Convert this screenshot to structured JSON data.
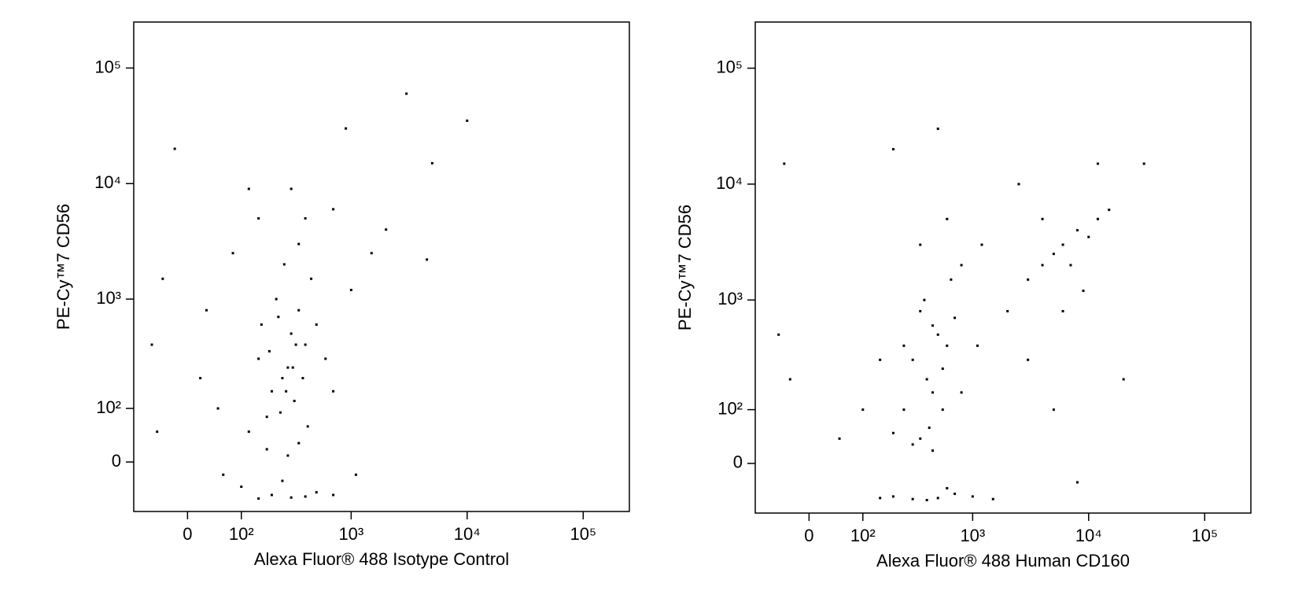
{
  "chart_data": [
    {
      "type": "scatter",
      "xlabel": "Alexa Fluor® 488 Isotype Control",
      "ylabel": "PE-Cy™7 CD56",
      "xscale": "biexponential",
      "yscale": "biexponential",
      "color": "#000000",
      "xlim": [
        -100,
        250000
      ],
      "ylim": [
        -90,
        250000
      ],
      "xticks": [
        0,
        {
          "value": 100,
          "label": "10²"
        },
        {
          "value": 1000,
          "label": "10³"
        },
        {
          "value": 10000,
          "label": "10⁴"
        },
        {
          "value": 100000,
          "label": "10⁵"
        }
      ],
      "yticks": [
        0,
        {
          "value": 100,
          "label": "10²"
        },
        {
          "value": 1000,
          "label": "10³"
        },
        {
          "value": 10000,
          "label": "10⁴"
        },
        {
          "value": 100000,
          "label": "10⁵"
        }
      ],
      "x": [
        150,
        250,
        300,
        200,
        400,
        350,
        180,
        220,
        280,
        320,
        500,
        120,
        260,
        350,
        150,
        80,
        -40,
        -60,
        20,
        50,
        600,
        700,
        450,
        1000,
        1500,
        2000,
        3000,
        10000,
        5000,
        1100,
        300,
        200,
        400,
        150,
        500,
        250,
        100,
        60,
        350,
        280,
        180,
        420,
        230,
        330,
        270,
        190,
        310,
        240,
        380,
        160,
        -20,
        -50,
        700,
        900,
        4500,
        300,
        700,
        120,
        400,
        30
      ],
      "values": [
        300,
        200,
        500,
        150,
        400,
        800,
        80,
        1000,
        250,
        120,
        600,
        50,
        2000,
        3000,
        5000,
        2500,
        1500,
        400,
        200,
        100,
        300,
        150,
        1500,
        1200,
        2500,
        4000,
        60000,
        35000,
        15000,
        -20,
        -60,
        -55,
        -58,
        -62,
        -50,
        -30,
        -40,
        -20,
        30,
        10,
        20,
        60,
        700,
        400,
        150,
        350,
        250,
        90,
        200,
        600,
        20000,
        50,
        -55,
        30000,
        2200,
        9000,
        6000,
        9000,
        5000,
        800
      ]
    },
    {
      "type": "scatter",
      "xlabel": "Alexa Fluor® 488 Human CD160",
      "ylabel": "PE-Cy™7 CD56",
      "xscale": "biexponential",
      "yscale": "biexponential",
      "color": "#000000",
      "xlim": [
        -100,
        250000
      ],
      "ylim": [
        -90,
        250000
      ],
      "xticks": [
        0,
        {
          "value": 100,
          "label": "10²"
        },
        {
          "value": 1000,
          "label": "10³"
        },
        {
          "value": 10000,
          "label": "10⁴"
        },
        {
          "value": 100000,
          "label": "10⁵"
        }
      ],
      "yticks": [
        0,
        {
          "value": 100,
          "label": "10²"
        },
        {
          "value": 1000,
          "label": "10³"
        },
        {
          "value": 10000,
          "label": "10⁴"
        },
        {
          "value": 100000,
          "label": "10⁵"
        }
      ],
      "x": [
        300,
        400,
        500,
        350,
        250,
        450,
        600,
        200,
        380,
        420,
        550,
        300,
        700,
        150,
        100,
        50,
        -30,
        -50,
        800,
        1200,
        2000,
        3000,
        5000,
        6000,
        8000,
        10000,
        7000,
        4000,
        12000,
        15000,
        9000,
        6000,
        3000,
        5000,
        8000,
        20000,
        300,
        500,
        400,
        200,
        700,
        1000,
        1500,
        150,
        600,
        450,
        350,
        250,
        550,
        650,
        2500,
        500,
        200,
        30000,
        12000,
        -40,
        600,
        350,
        450,
        800,
        1100,
        4000
      ],
      "values": [
        300,
        200,
        500,
        800,
        100,
        150,
        400,
        50,
        1000,
        60,
        250,
        30,
        700,
        300,
        100,
        40,
        200,
        500,
        2000,
        3000,
        800,
        1500,
        2500,
        3000,
        4000,
        3500,
        2000,
        5000,
        5000,
        6000,
        1200,
        800,
        300,
        100,
        -30,
        200,
        -60,
        -58,
        -62,
        -55,
        -50,
        -55,
        -60,
        -58,
        -40,
        20,
        40,
        400,
        100,
        1500,
        10000,
        30000,
        20000,
        15000,
        15000,
        15000,
        5000,
        3000,
        600,
        150,
        400,
        2000
      ]
    }
  ]
}
